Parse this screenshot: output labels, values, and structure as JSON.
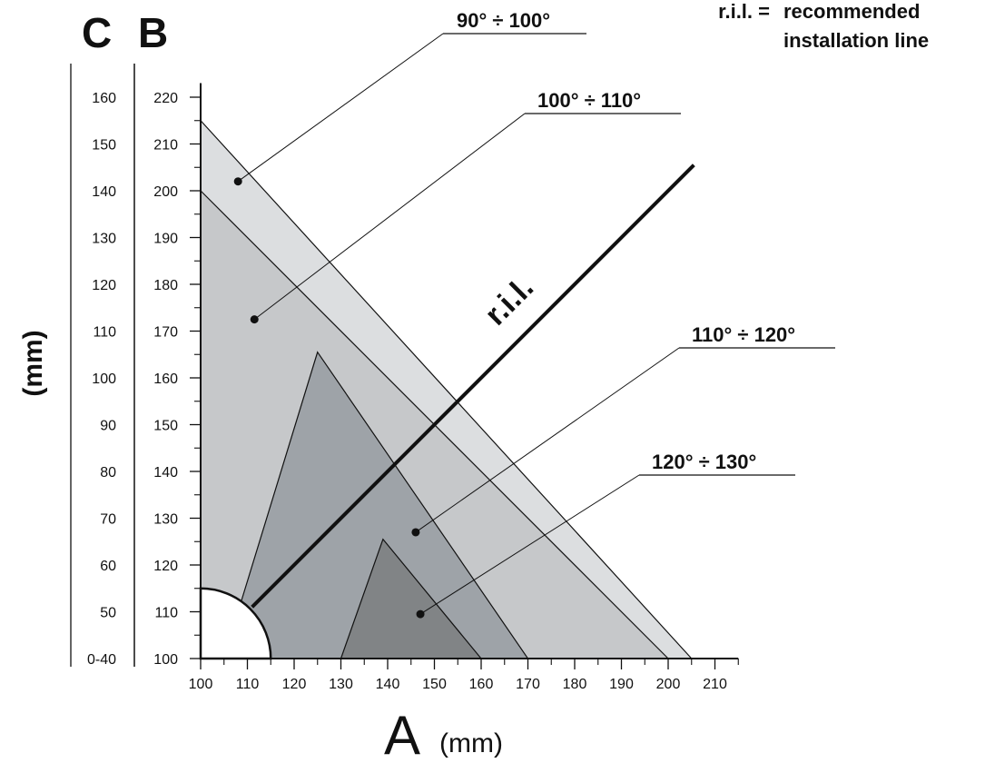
{
  "chart_data": {
    "type": "area",
    "axis_letters": {
      "a": "A",
      "b": "B",
      "c": "C"
    },
    "x_unit": "(mm)",
    "y_unit": "(mm)",
    "x_axis": {
      "ticks": [
        "100",
        "110",
        "120",
        "130",
        "140",
        "150",
        "160",
        "170",
        "180",
        "190",
        "200",
        "210"
      ],
      "range": [
        100,
        215
      ]
    },
    "b_axis": {
      "ticks": [
        "100",
        "110",
        "120",
        "130",
        "140",
        "150",
        "160",
        "170",
        "180",
        "190",
        "200",
        "210",
        "220"
      ],
      "range": [
        100,
        223
      ]
    },
    "c_axis": {
      "ticks": [
        "0-40",
        "50",
        "60",
        "70",
        "80",
        "90",
        "100",
        "110",
        "120",
        "130",
        "140",
        "150",
        "160"
      ]
    },
    "grid": false,
    "regions": [
      {
        "name": "90° ÷ 100°",
        "color": "#dcdee0",
        "points": [
          [
            100,
            215
          ],
          [
            205,
            100
          ],
          [
            100,
            100
          ]
        ]
      },
      {
        "name": "100° ÷ 110°",
        "color": "#c6c8ca",
        "points": [
          [
            100,
            200
          ],
          [
            200,
            100
          ],
          [
            100,
            100
          ]
        ]
      },
      {
        "name": "110° ÷ 120°",
        "color": "#9ea3a8",
        "points": [
          [
            125,
            165.5
          ],
          [
            170,
            100
          ],
          [
            115,
            100
          ],
          [
            108,
            110
          ]
        ]
      },
      {
        "name": "120° ÷ 130°",
        "color": "#818486",
        "points": [
          [
            139,
            125.5
          ],
          [
            160,
            100
          ],
          [
            130,
            100
          ]
        ]
      }
    ],
    "excluded_zone": {
      "shape": "quarter-circle",
      "center": [
        100,
        100
      ],
      "radius": 15
    },
    "label_markers": [
      {
        "label": "90° ÷ 100°",
        "point": [
          108,
          202
        ]
      },
      {
        "label": "100° ÷ 110°",
        "point": [
          111.5,
          172.5
        ]
      },
      {
        "label": "110° ÷ 120°",
        "point": [
          146,
          127
        ]
      },
      {
        "label": "120° ÷ 130°",
        "point": [
          147,
          109.5
        ]
      }
    ],
    "recommended_line": {
      "label": "r.i.l.",
      "from": [
        111,
        111
      ],
      "to": [
        205.5,
        205.5
      ]
    }
  },
  "legend": {
    "abbr": "r.i.l. =",
    "line1": "recommended",
    "line2": "installation line"
  }
}
